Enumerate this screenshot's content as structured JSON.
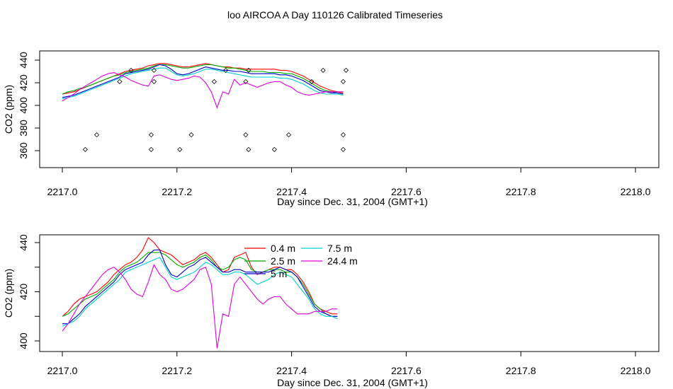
{
  "figure": {
    "title": "loo AIRCOA A  Day 110126  Calibrated Timeseries"
  },
  "chart_data": [
    {
      "type": "line",
      "xlabel": "Day since Dec. 31, 2004 (GMT+1)",
      "ylabel": "CO2 (ppm)",
      "xlim": [
        2217.0,
        2218.0
      ],
      "ylim": [
        350,
        445
      ],
      "xticks": [
        "2217.0",
        "2217.2",
        "2217.4",
        "2217.6",
        "2217.8",
        "2218.0"
      ],
      "xtick_values": [
        2217.0,
        2217.2,
        2217.4,
        2217.6,
        2217.8,
        2218.0
      ],
      "yticks": [
        "360",
        "380",
        "400",
        "420",
        "440"
      ],
      "ytick_values": [
        360,
        380,
        400,
        420,
        440
      ],
      "x": [
        2217.0,
        2217.01,
        2217.02,
        2217.03,
        2217.04,
        2217.05,
        2217.06,
        2217.07,
        2217.08,
        2217.09,
        2217.1,
        2217.11,
        2217.12,
        2217.13,
        2217.14,
        2217.15,
        2217.16,
        2217.17,
        2217.18,
        2217.19,
        2217.2,
        2217.21,
        2217.22,
        2217.23,
        2217.24,
        2217.25,
        2217.26,
        2217.27,
        2217.28,
        2217.29,
        2217.3,
        2217.31,
        2217.32,
        2217.33,
        2217.34,
        2217.35,
        2217.36,
        2217.37,
        2217.38,
        2217.39,
        2217.4,
        2217.41,
        2217.42,
        2217.43,
        2217.44,
        2217.45,
        2217.46,
        2217.47,
        2217.48,
        2217.49
      ],
      "series": [
        {
          "name": "0.4 m",
          "color": "#ff0000",
          "values": [
            410,
            411,
            412,
            414,
            416,
            418,
            420,
            422,
            424,
            426,
            428,
            430,
            431,
            432,
            433,
            435,
            436,
            437,
            437,
            436,
            435,
            434,
            434,
            435,
            436,
            437,
            436,
            435,
            434,
            434,
            433,
            433,
            432,
            432,
            432,
            432,
            432,
            432,
            431,
            431,
            430,
            428,
            426,
            423,
            420,
            417,
            415,
            413,
            412,
            411
          ]
        },
        {
          "name": "2.5 m",
          "color": "#00aa00",
          "values": [
            410,
            412,
            413,
            415,
            416,
            418,
            420,
            422,
            424,
            426,
            427,
            429,
            430,
            431,
            432,
            433,
            435,
            436,
            436,
            435,
            434,
            433,
            433,
            434,
            435,
            436,
            436,
            435,
            434,
            433,
            433,
            432,
            431,
            430,
            430,
            430,
            429,
            429,
            429,
            428,
            428,
            426,
            424,
            421,
            418,
            415,
            413,
            412,
            411,
            410
          ]
        },
        {
          "name": "5 m",
          "color": "#0000cc",
          "values": [
            407,
            408,
            409,
            411,
            413,
            415,
            417,
            419,
            421,
            423,
            425,
            428,
            429,
            430,
            431,
            432,
            434,
            436,
            435,
            432,
            428,
            427,
            428,
            430,
            432,
            434,
            433,
            432,
            431,
            431,
            430,
            430,
            429,
            428,
            428,
            428,
            428,
            428,
            427,
            427,
            426,
            424,
            422,
            419,
            416,
            413,
            412,
            411,
            411,
            410
          ]
        },
        {
          "name": "7.5 m",
          "color": "#00d0d0",
          "values": [
            406,
            407,
            408,
            410,
            412,
            414,
            416,
            418,
            420,
            422,
            424,
            426,
            428,
            429,
            430,
            431,
            432,
            433,
            433,
            430,
            427,
            426,
            427,
            428,
            430,
            432,
            432,
            431,
            430,
            429,
            428,
            427,
            426,
            425,
            425,
            425,
            425,
            425,
            424,
            424,
            423,
            421,
            419,
            416,
            413,
            411,
            410,
            410,
            410,
            409
          ]
        },
        {
          "name": "24.4 m",
          "color": "#e000e0",
          "values": [
            404,
            407,
            410,
            414,
            417,
            420,
            423,
            426,
            428,
            429,
            427,
            425,
            422,
            420,
            418,
            417,
            426,
            427,
            425,
            423,
            422,
            423,
            424,
            426,
            425,
            420,
            412,
            398,
            412,
            410,
            423,
            418,
            420,
            418,
            416,
            418,
            420,
            421,
            421,
            418,
            416,
            412,
            410,
            409,
            410,
            411,
            412,
            412,
            412,
            412
          ]
        }
      ],
      "flags": {
        "x": [
          2217.04,
          2217.06,
          2217.1,
          2217.12,
          2217.155,
          2217.155,
          2217.16,
          2217.16,
          2217.205,
          2217.225,
          2217.265,
          2217.285,
          2217.32,
          2217.32,
          2217.325,
          2217.325,
          2217.37,
          2217.395,
          2217.435,
          2217.455,
          2217.49,
          2217.49,
          2217.49,
          2217.495
        ],
        "y": [
          361,
          374,
          421,
          431,
          361,
          374,
          421,
          431,
          361,
          374,
          421,
          431,
          374,
          421,
          431,
          361,
          361,
          374,
          421,
          431,
          361,
          374,
          421,
          431
        ]
      }
    },
    {
      "type": "line",
      "xlabel": "Day since Dec. 31, 2004 (GMT+1)",
      "ylabel": "CO2 (ppm)",
      "xlim": [
        2217.0,
        2218.0
      ],
      "ylim": [
        397,
        443
      ],
      "xticks": [
        "2217.0",
        "2217.2",
        "2217.4",
        "2217.6",
        "2217.8",
        "2218.0"
      ],
      "xtick_values": [
        2217.0,
        2217.2,
        2217.4,
        2217.6,
        2217.8,
        2218.0
      ],
      "yticks": [
        "400",
        "420",
        "440"
      ],
      "ytick_values": [
        400,
        420,
        440
      ],
      "minor_yticks": [
        410,
        430
      ],
      "legend": {
        "position": "top-center",
        "columns": 2
      },
      "x": [
        2217.0,
        2217.01,
        2217.02,
        2217.03,
        2217.04,
        2217.05,
        2217.06,
        2217.07,
        2217.08,
        2217.09,
        2217.1,
        2217.11,
        2217.12,
        2217.13,
        2217.14,
        2217.15,
        2217.16,
        2217.17,
        2217.18,
        2217.19,
        2217.2,
        2217.21,
        2217.22,
        2217.23,
        2217.24,
        2217.25,
        2217.26,
        2217.27,
        2217.28,
        2217.29,
        2217.3,
        2217.31,
        2217.32,
        2217.33,
        2217.34,
        2217.35,
        2217.36,
        2217.37,
        2217.38,
        2217.39,
        2217.4,
        2217.41,
        2217.42,
        2217.43,
        2217.44,
        2217.45,
        2217.46,
        2217.47,
        2217.48
      ],
      "series": [
        {
          "name": "0.4 m",
          "color": "#ff0000",
          "values": [
            410,
            412,
            415,
            417,
            418,
            419,
            420,
            422,
            424,
            427,
            429,
            431,
            432,
            434,
            437,
            442,
            440,
            437,
            436,
            435,
            433,
            431,
            432,
            433,
            435,
            436,
            434,
            431,
            428,
            429,
            434,
            435,
            436,
            430,
            427,
            428,
            429,
            430,
            430,
            429,
            429,
            427,
            424,
            420,
            415,
            413,
            412,
            411,
            411
          ]
        },
        {
          "name": "2.5 m",
          "color": "#00aa00",
          "values": [
            410,
            411,
            413,
            415,
            417,
            418,
            419,
            421,
            423,
            425,
            428,
            430,
            431,
            432,
            434,
            436,
            436,
            436,
            435,
            433,
            431,
            430,
            431,
            432,
            434,
            435,
            433,
            430,
            429,
            430,
            433,
            434,
            433,
            429,
            428,
            428,
            429,
            429,
            429,
            428,
            428,
            426,
            423,
            419,
            415,
            413,
            411,
            410,
            410
          ]
        },
        {
          "name": "5 m",
          "color": "#0000cc",
          "values": [
            407,
            407,
            409,
            411,
            414,
            416,
            418,
            420,
            422,
            424,
            427,
            429,
            430,
            431,
            432,
            435,
            437,
            437,
            431,
            427,
            426,
            428,
            430,
            431,
            433,
            434,
            432,
            430,
            428,
            428,
            429,
            429,
            428,
            428,
            428,
            428,
            428,
            429,
            430,
            429,
            428,
            426,
            422,
            418,
            414,
            412,
            411,
            410,
            410
          ]
        },
        {
          "name": "7.5 m",
          "color": "#00d0d0",
          "values": [
            406,
            407,
            408,
            410,
            413,
            415,
            417,
            419,
            421,
            423,
            425,
            428,
            429,
            430,
            431,
            432,
            433,
            434,
            430,
            426,
            425,
            426,
            427,
            428,
            430,
            432,
            431,
            429,
            427,
            427,
            428,
            428,
            427,
            425,
            423,
            424,
            425,
            427,
            428,
            427,
            426,
            423,
            420,
            417,
            413,
            411,
            410,
            410,
            409
          ]
        },
        {
          "name": "24.4 m",
          "color": "#e000e0",
          "values": [
            404,
            407,
            411,
            415,
            418,
            421,
            424,
            427,
            429,
            430,
            428,
            425,
            421,
            419,
            418,
            424,
            431,
            427,
            425,
            421,
            420,
            421,
            423,
            425,
            429,
            430,
            423,
            397,
            411,
            410,
            423,
            426,
            423,
            420,
            417,
            415,
            417,
            418,
            418,
            415,
            413,
            411,
            411,
            411,
            412,
            412,
            412,
            413,
            413
          ]
        }
      ]
    }
  ]
}
